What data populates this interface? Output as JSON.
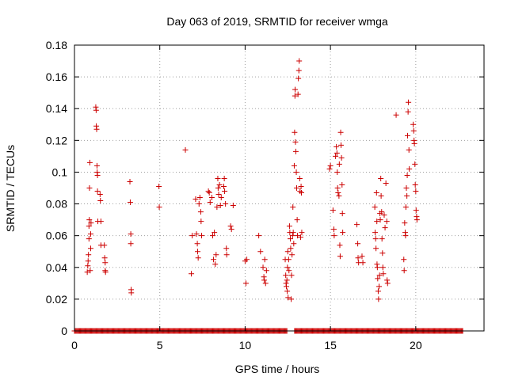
{
  "chart_data": {
    "type": "scatter",
    "title": "Day 063 of 2019, SRMTID for receiver wmga",
    "xlabel": "GPS time / hours",
    "ylabel": "SRMTID / TECUs",
    "xlim": [
      0,
      24
    ],
    "ylim": [
      0,
      0.18
    ],
    "xticks": [
      0,
      5,
      10,
      15,
      20
    ],
    "xtick_labels": [
      "0",
      "5",
      "10",
      "15",
      "20"
    ],
    "yticks": [
      0,
      0.02,
      0.04,
      0.06,
      0.08,
      0.1,
      0.12,
      0.14,
      0.16,
      0.18
    ],
    "ytick_labels": [
      "0",
      "0.02",
      "0.04",
      "0.06",
      "0.08",
      "0.1",
      "0.12",
      "0.14",
      "0.16",
      "0.18"
    ],
    "grid": true,
    "marker": "+",
    "color": "#cc0000",
    "zero_baseline_segments": [
      [
        0.0,
        12.45
      ],
      [
        12.9,
        22.75
      ]
    ],
    "series": [
      {
        "name": "SRMTID",
        "points": [
          [
            0.75,
            0.037
          ],
          [
            0.78,
            0.041
          ],
          [
            0.8,
            0.044
          ],
          [
            0.82,
            0.048
          ],
          [
            0.85,
            0.058
          ],
          [
            0.85,
            0.066
          ],
          [
            0.87,
            0.07
          ],
          [
            0.88,
            0.09
          ],
          [
            0.9,
            0.106
          ],
          [
            0.92,
            0.038
          ],
          [
            0.95,
            0.052
          ],
          [
            0.95,
            0.061
          ],
          [
            0.97,
            0.068
          ],
          [
            1.25,
            0.141
          ],
          [
            1.27,
            0.139
          ],
          [
            1.28,
            0.129
          ],
          [
            1.3,
            0.127
          ],
          [
            1.32,
            0.104
          ],
          [
            1.33,
            0.1
          ],
          [
            1.35,
            0.098
          ],
          [
            1.35,
            0.088
          ],
          [
            1.37,
            0.069
          ],
          [
            1.5,
            0.086
          ],
          [
            1.52,
            0.082
          ],
          [
            1.55,
            0.069
          ],
          [
            1.55,
            0.054
          ],
          [
            1.75,
            0.054
          ],
          [
            1.77,
            0.046
          ],
          [
            1.8,
            0.043
          ],
          [
            1.8,
            0.038
          ],
          [
            1.82,
            0.037
          ],
          [
            3.25,
            0.094
          ],
          [
            3.27,
            0.081
          ],
          [
            3.3,
            0.061
          ],
          [
            3.3,
            0.055
          ],
          [
            3.32,
            0.026
          ],
          [
            3.33,
            0.024
          ],
          [
            4.95,
            0.091
          ],
          [
            4.97,
            0.078
          ],
          [
            6.5,
            0.114
          ],
          [
            6.85,
            0.036
          ],
          [
            6.9,
            0.06
          ],
          [
            7.1,
            0.083
          ],
          [
            7.15,
            0.061
          ],
          [
            7.2,
            0.055
          ],
          [
            7.22,
            0.05
          ],
          [
            7.25,
            0.046
          ],
          [
            7.3,
            0.08
          ],
          [
            7.35,
            0.084
          ],
          [
            7.4,
            0.075
          ],
          [
            7.42,
            0.069
          ],
          [
            7.45,
            0.06
          ],
          [
            7.85,
            0.088
          ],
          [
            7.9,
            0.087
          ],
          [
            7.95,
            0.081
          ],
          [
            8.05,
            0.084
          ],
          [
            8.1,
            0.06
          ],
          [
            8.15,
            0.045
          ],
          [
            8.2,
            0.062
          ],
          [
            8.25,
            0.042
          ],
          [
            8.3,
            0.048
          ],
          [
            8.35,
            0.078
          ],
          [
            8.4,
            0.096
          ],
          [
            8.42,
            0.09
          ],
          [
            8.45,
            0.086
          ],
          [
            8.5,
            0.092
          ],
          [
            8.55,
            0.079
          ],
          [
            8.6,
            0.084
          ],
          [
            8.75,
            0.091
          ],
          [
            8.78,
            0.096
          ],
          [
            8.8,
            0.088
          ],
          [
            8.85,
            0.08
          ],
          [
            8.9,
            0.052
          ],
          [
            8.92,
            0.048
          ],
          [
            9.15,
            0.066
          ],
          [
            9.2,
            0.064
          ],
          [
            9.3,
            0.079
          ],
          [
            10.0,
            0.044
          ],
          [
            10.05,
            0.03
          ],
          [
            10.1,
            0.045
          ],
          [
            10.8,
            0.06
          ],
          [
            10.9,
            0.05
          ],
          [
            11.05,
            0.04
          ],
          [
            11.1,
            0.034
          ],
          [
            11.12,
            0.032
          ],
          [
            11.15,
            0.045
          ],
          [
            11.2,
            0.03
          ],
          [
            11.25,
            0.038
          ],
          [
            12.35,
            0.045
          ],
          [
            12.38,
            0.035
          ],
          [
            12.4,
            0.03
          ],
          [
            12.42,
            0.028
          ],
          [
            12.45,
            0.032
          ],
          [
            12.47,
            0.025
          ],
          [
            12.48,
            0.04
          ],
          [
            12.5,
            0.05
          ],
          [
            12.52,
            0.021
          ],
          [
            12.55,
            0.045
          ],
          [
            12.57,
            0.038
          ],
          [
            12.6,
            0.066
          ],
          [
            12.62,
            0.062
          ],
          [
            12.65,
            0.058
          ],
          [
            12.67,
            0.052
          ],
          [
            12.7,
            0.02
          ],
          [
            12.72,
            0.035
          ],
          [
            12.75,
            0.048
          ],
          [
            12.78,
            0.06
          ],
          [
            12.8,
            0.078
          ],
          [
            12.82,
            0.062
          ],
          [
            12.85,
            0.055
          ],
          [
            12.88,
            0.104
          ],
          [
            12.9,
            0.125
          ],
          [
            12.92,
            0.148
          ],
          [
            12.93,
            0.152
          ],
          [
            12.95,
            0.119
          ],
          [
            12.97,
            0.113
          ],
          [
            13.0,
            0.1
          ],
          [
            13.02,
            0.09
          ],
          [
            13.05,
            0.07
          ],
          [
            13.07,
            0.06
          ],
          [
            13.1,
            0.149
          ],
          [
            13.12,
            0.159
          ],
          [
            13.15,
            0.164
          ],
          [
            13.17,
            0.17
          ],
          [
            13.2,
            0.096
          ],
          [
            13.22,
            0.088
          ],
          [
            13.25,
            0.059
          ],
          [
            13.28,
            0.091
          ],
          [
            13.3,
            0.087
          ],
          [
            13.32,
            0.062
          ],
          [
            14.95,
            0.102
          ],
          [
            15.0,
            0.104
          ],
          [
            15.15,
            0.076
          ],
          [
            15.2,
            0.064
          ],
          [
            15.22,
            0.06
          ],
          [
            15.3,
            0.11
          ],
          [
            15.35,
            0.116
          ],
          [
            15.38,
            0.112
          ],
          [
            15.4,
            0.1
          ],
          [
            15.42,
            0.09
          ],
          [
            15.45,
            0.087
          ],
          [
            15.5,
            0.085
          ],
          [
            15.52,
            0.105
          ],
          [
            15.55,
            0.054
          ],
          [
            15.57,
            0.047
          ],
          [
            15.6,
            0.125
          ],
          [
            15.62,
            0.117
          ],
          [
            15.65,
            0.109
          ],
          [
            15.68,
            0.092
          ],
          [
            15.7,
            0.074
          ],
          [
            15.72,
            0.062
          ],
          [
            16.55,
            0.067
          ],
          [
            16.6,
            0.055
          ],
          [
            16.62,
            0.046
          ],
          [
            16.65,
            0.043
          ],
          [
            16.85,
            0.047
          ],
          [
            16.9,
            0.043
          ],
          [
            17.6,
            0.078
          ],
          [
            17.62,
            0.062
          ],
          [
            17.65,
            0.058
          ],
          [
            17.67,
            0.052
          ],
          [
            17.7,
            0.087
          ],
          [
            17.72,
            0.069
          ],
          [
            17.73,
            0.042
          ],
          [
            17.75,
            0.04
          ],
          [
            17.77,
            0.033
          ],
          [
            17.8,
            0.025
          ],
          [
            17.82,
            0.02
          ],
          [
            17.85,
            0.028
          ],
          [
            17.88,
            0.035
          ],
          [
            17.9,
            0.074
          ],
          [
            17.92,
            0.07
          ],
          [
            17.95,
            0.096
          ],
          [
            17.97,
            0.085
          ],
          [
            18.0,
            0.075
          ],
          [
            18.02,
            0.058
          ],
          [
            18.05,
            0.049
          ],
          [
            18.07,
            0.04
          ],
          [
            18.1,
            0.036
          ],
          [
            18.15,
            0.073
          ],
          [
            18.2,
            0.065
          ],
          [
            18.25,
            0.093
          ],
          [
            18.3,
            0.069
          ],
          [
            18.32,
            0.032
          ],
          [
            18.35,
            0.03
          ],
          [
            18.85,
            0.136
          ],
          [
            19.3,
            0.045
          ],
          [
            19.32,
            0.038
          ],
          [
            19.35,
            0.068
          ],
          [
            19.38,
            0.062
          ],
          [
            19.4,
            0.06
          ],
          [
            19.42,
            0.078
          ],
          [
            19.45,
            0.09
          ],
          [
            19.48,
            0.085
          ],
          [
            19.5,
            0.098
          ],
          [
            19.52,
            0.123
          ],
          [
            19.55,
            0.138
          ],
          [
            19.57,
            0.144
          ],
          [
            19.6,
            0.114
          ],
          [
            19.62,
            0.102
          ],
          [
            19.85,
            0.13
          ],
          [
            19.88,
            0.126
          ],
          [
            19.9,
            0.12
          ],
          [
            19.92,
            0.118
          ],
          [
            19.95,
            0.105
          ],
          [
            19.97,
            0.092
          ],
          [
            20.0,
            0.088
          ],
          [
            20.02,
            0.076
          ],
          [
            20.05,
            0.072
          ],
          [
            20.07,
            0.07
          ]
        ]
      }
    ]
  }
}
